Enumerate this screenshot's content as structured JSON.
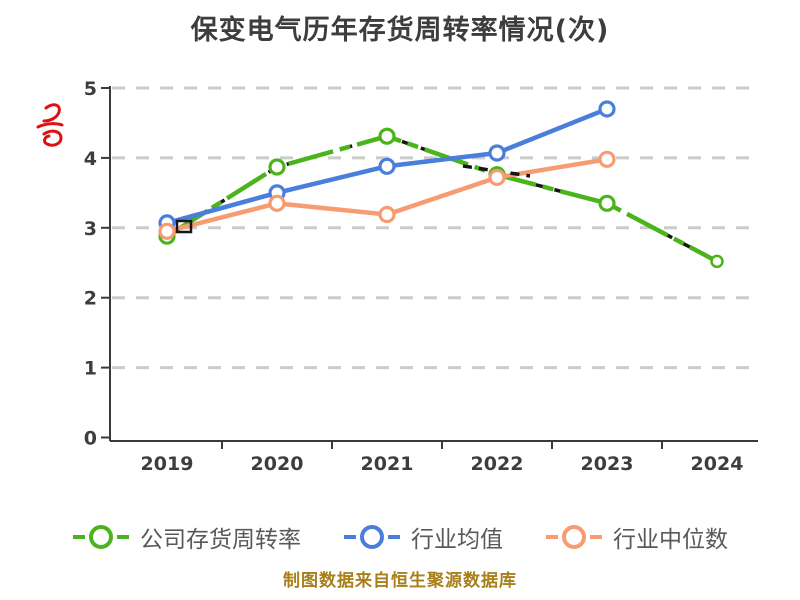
{
  "title": "保变电气历年存货周转率情况(次)",
  "footer": {
    "text": "制图数据来自恒生聚源数据库",
    "color": "#a87f18"
  },
  "watermark": {
    "shape": "red-scribble",
    "color": "#dd1111"
  },
  "legend": [
    {
      "label": "公司存货周转率",
      "color": "#4bb41c"
    },
    {
      "label": "行业均值",
      "color": "#4a7edb"
    },
    {
      "label": "行业中位数",
      "color": "#f79b70"
    }
  ],
  "chart_data": {
    "type": "line",
    "title": "保变电气历年存货周转率情况(次)",
    "categories": [
      "2019",
      "2020",
      "2021",
      "2022",
      "2023",
      "2024"
    ],
    "series": [
      {
        "name": "公司存货周转率",
        "color": "#4bb41c",
        "marker": "circle-white-fill",
        "style": "solid-with-dark-dash-overlay",
        "values": [
          2.88,
          3.87,
          4.31,
          3.76,
          3.35,
          2.52
        ]
      },
      {
        "name": "行业均值",
        "color": "#4a7edb",
        "marker": "circle-white-fill",
        "style": "solid",
        "values": [
          3.07,
          3.5,
          3.88,
          4.07,
          4.7,
          null
        ]
      },
      {
        "name": "行业中位数",
        "color": "#f79b70",
        "marker": "circle-white-fill",
        "style": "solid",
        "values": [
          2.95,
          3.35,
          3.19,
          3.72,
          3.98,
          null
        ]
      }
    ],
    "xlabel": "",
    "ylabel": "",
    "yticks": [
      0,
      1,
      2,
      3,
      4,
      5
    ],
    "ylim": [
      0,
      5
    ],
    "grid": "dashed-horizontal",
    "legend_position": "bottom",
    "axis_color": "#3a3a3a",
    "grid_color": "#cbcbcb",
    "tick_label_color": "#3d3d3d"
  }
}
